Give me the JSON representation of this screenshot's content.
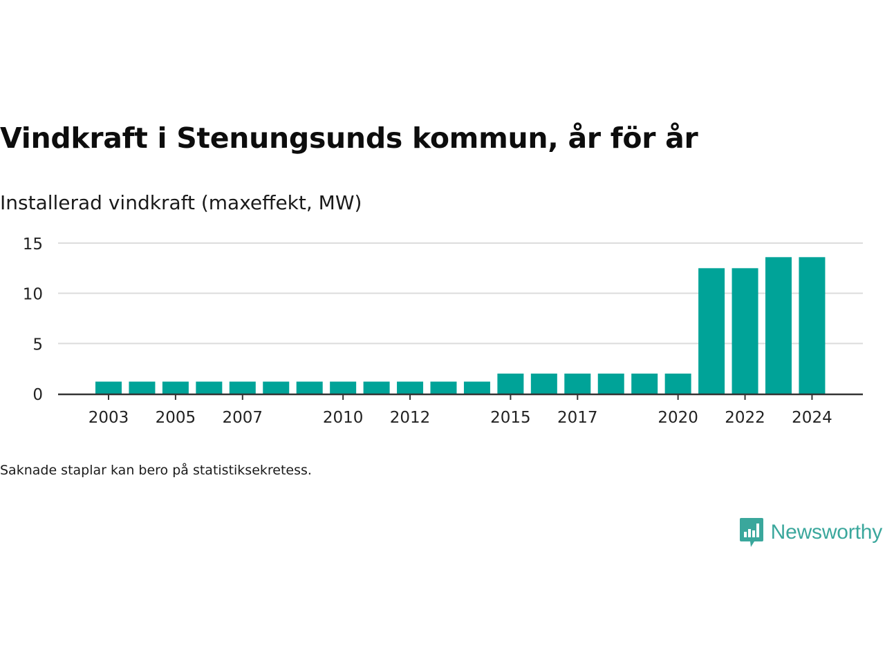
{
  "header": {
    "title": "Vindkraft i Stenungsunds kommun, år för år",
    "subtitle": "Installerad vindkraft (maxeffekt, MW)"
  },
  "footer": {
    "note": "Saknade staplar kan bero på statistiksekretess.",
    "brand": "Newsworthy",
    "brand_icon": "newsworthy-logo-icon"
  },
  "colors": {
    "bar": "#00a398",
    "grid": "#dcdcdc",
    "axis": "#333333",
    "brand": "#3aa79c"
  },
  "chart_data": {
    "type": "bar",
    "categories": [
      "2003",
      "2004",
      "2005",
      "2006",
      "2007",
      "2008",
      "2009",
      "2010",
      "2011",
      "2012",
      "2013",
      "2014",
      "2015",
      "2016",
      "2017",
      "2018",
      "2019",
      "2020",
      "2021",
      "2022",
      "2023",
      "2024"
    ],
    "values": [
      1.2,
      1.2,
      1.2,
      1.2,
      1.2,
      1.2,
      1.2,
      1.2,
      1.2,
      1.2,
      1.2,
      1.2,
      2.0,
      2.0,
      2.0,
      2.0,
      2.0,
      2.0,
      12.5,
      12.5,
      13.6,
      13.6
    ],
    "x_tick_labels": [
      "2003",
      "2005",
      "2007",
      "2010",
      "2012",
      "2015",
      "2017",
      "2020",
      "2022",
      "2024"
    ],
    "y_ticks": [
      0,
      5,
      10,
      15
    ],
    "ylim": [
      0,
      15
    ],
    "grid": true,
    "title": "Vindkraft i Stenungsunds kommun, år för år",
    "ylabel": "Installerad vindkraft (maxeffekt, MW)",
    "xlabel": ""
  }
}
